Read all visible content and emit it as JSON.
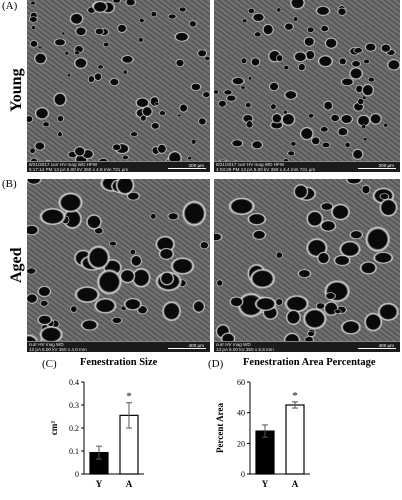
{
  "panels": {
    "A": {
      "label": "(A)",
      "row_label": "Young",
      "images": [
        {
          "bar_line1": "8/21/2017   curr    HV    mag  WD    HFW",
          "bar_line2": "5:17:14 PM 13 pA 5.00 kV  350 x  4.8 mm 731 µm",
          "scale": "200 µm",
          "footer": "Magellan"
        },
        {
          "bar_line1": "8/21/2017   curr    HV    mag  WD    HFW",
          "bar_line2": "4:03:29 PM 13 pA 5.00 kV  350 x  4.4 mm 731 µm",
          "scale": "200 µm",
          "footer": "Magellan"
        }
      ]
    },
    "B": {
      "label": "(B)",
      "row_label": "Aged",
      "images": [
        {
          "bar_line1": "curr    HV    mag  WD",
          "bar_line2": "13 pA 5.00 kV  350 x  4.0 mm",
          "scale": "400 µm",
          "footer": "Magellan"
        },
        {
          "bar_line1": "curr    HV    mag  WD",
          "bar_line2": "13 pA 5.00 kV  350 x  5.8 mm",
          "scale": "400 µm",
          "footer": "Magellan"
        }
      ]
    }
  },
  "chart_data": [
    {
      "panel": "(C)",
      "type": "bar",
      "title": "Fenestration Size",
      "ylabel": "cm²",
      "categories": [
        "Y",
        "A"
      ],
      "values": [
        0.093,
        0.255
      ],
      "errors": [
        0.028,
        0.055
      ],
      "fills": [
        "#000000",
        "#ffffff"
      ],
      "ylim": [
        0,
        0.4
      ],
      "yticks": [
        0,
        0.1,
        0.2,
        0.3,
        0.4
      ],
      "ytick_labels": [
        "0",
        "0.1",
        "0.2",
        "0.3",
        "0.4"
      ],
      "annotations": [
        "",
        "*"
      ]
    },
    {
      "panel": "(D)",
      "type": "bar",
      "title": "Fenestration Area Percentage",
      "ylabel": "Percent Area",
      "categories": [
        "Y",
        "A"
      ],
      "values": [
        28,
        45
      ],
      "errors": [
        4,
        2
      ],
      "fills": [
        "#000000",
        "#ffffff"
      ],
      "ylim": [
        0,
        60
      ],
      "yticks": [
        0,
        20,
        40,
        60
      ],
      "ytick_labels": [
        "0",
        "20",
        "40",
        "60"
      ],
      "annotations": [
        "",
        "*"
      ]
    }
  ]
}
